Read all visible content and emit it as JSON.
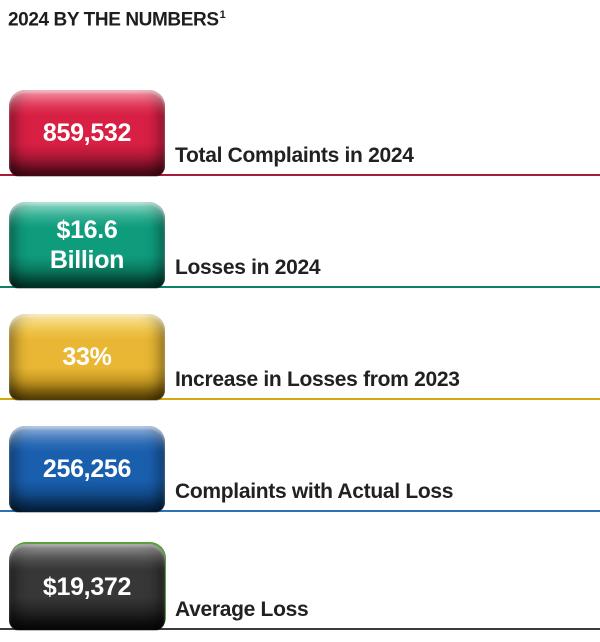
{
  "title": {
    "text": "2024 BY THE NUMBERS",
    "superscript": "1"
  },
  "chart_data": {
    "type": "table",
    "title": "2024 By the Numbers",
    "items": [
      {
        "value": "859,532",
        "label": "Total Complaints in 2024",
        "colors": {
          "base": "#d81f44",
          "highlight": "#ee5a74",
          "shadow": "#7e1028",
          "line": "#a51d36"
        }
      },
      {
        "value": "$16.6\nBillion",
        "label": "Losses in 2024",
        "colors": {
          "base": "#0f9c7d",
          "highlight": "#55c3a9",
          "shadow": "#045a43",
          "line": "#0b8165"
        }
      },
      {
        "value": "33%",
        "label": "Increase in Losses from 2023",
        "colors": {
          "base": "#e9b734",
          "highlight": "#f8da72",
          "shadow": "#9c7408",
          "line": "#d4a90e"
        }
      },
      {
        "value": "256,256",
        "label": "Complaints with Actual Loss",
        "colors": {
          "base": "#1a5fae",
          "highlight": "#5588c6",
          "shadow": "#0a3a6e",
          "line": "#2f72b2"
        }
      },
      {
        "value": "$19,372",
        "label": "Average Loss",
        "colors": {
          "base": "#373737",
          "highlight": "#6f6f6f",
          "shadow": "#0f0f0f",
          "line": "#3c3c3c",
          "rim": "#57a23d"
        }
      }
    ]
  }
}
